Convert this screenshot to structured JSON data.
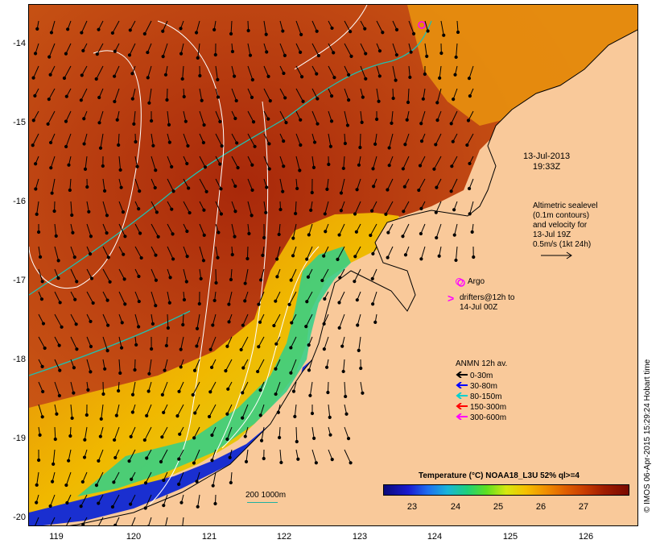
{
  "map": {
    "y_axis_labels": [
      "-14",
      "-15",
      "-16",
      "-17",
      "-18",
      "-19",
      "-20"
    ],
    "x_axis_labels": [
      "119",
      "120",
      "121",
      "122",
      "123",
      "124",
      "125",
      "126"
    ]
  },
  "annotations": {
    "date_line1": "13-Jul-2013",
    "date_line2": "19:33Z",
    "altimetric": [
      "Altimetric sealevel",
      "(0.1m contours)",
      "and velocity for",
      "13-Jul 19Z",
      "0.5m/s (1kt 24h)"
    ],
    "argo_label": "Argo",
    "drifters_line1": "drifters@12h to",
    "drifters_line2": "14-Jul 00Z",
    "anmn_title": "ANMN 12h av.",
    "anmn_items": [
      {
        "label": "0-30m",
        "color": "#000000"
      },
      {
        "label": "30-80m",
        "color": "#0000ff"
      },
      {
        "label": "80-150m",
        "color": "#00d0d0"
      },
      {
        "label": "150-300m",
        "color": "#ff0000"
      },
      {
        "label": "300-600m",
        "color": "#ff00ff"
      }
    ]
  },
  "colorbar": {
    "title": "Temperature (°C) NOAA18_L3U 52% ql>=4",
    "ticks": [
      "23",
      "24",
      "25",
      "26",
      "27"
    ]
  },
  "scale_label": "200  1000m",
  "credit": "© IMOS 06-Apr-2015 15:29:24 Hobart time",
  "colors": {
    "land": "#f9c99a",
    "warm_sea": "#b53a10",
    "cool_sea": "#1a2fd0",
    "contour_cyan": "#20c0b0",
    "argo_magenta": "#ff00ff"
  }
}
